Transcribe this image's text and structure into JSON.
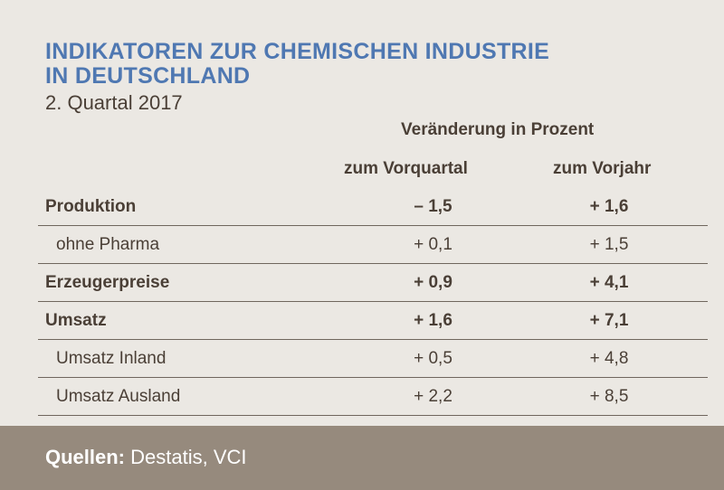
{
  "title": {
    "line1": "INDIKATOREN ZUR CHEMISCHEN INDUSTRIE",
    "line2": "IN DEUTSCHLAND"
  },
  "subtitle": "2.  Quartal 2017",
  "header": {
    "group": "Veränderung in Prozent",
    "col1": "zum Vorquartal",
    "col2": "zum Vorjahr"
  },
  "rows": [
    {
      "label": "Produktion",
      "v1": "– 1,5",
      "v2": "+ 1,6"
    },
    {
      "label": "ohne Pharma",
      "v1": "+ 0,1",
      "v2": "+ 1,5"
    },
    {
      "label": "Erzeugerpreise",
      "v1": "+ 0,9",
      "v2": "+ 4,1"
    },
    {
      "label": "Umsatz",
      "v1": "+ 1,6",
      "v2": "+ 7,1"
    },
    {
      "label": "Umsatz Inland",
      "v1": "+ 0,5",
      "v2": "+ 4,8"
    },
    {
      "label": "Umsatz Ausland",
      "v1": "+ 2,2",
      "v2": "+ 8,5"
    }
  ],
  "footer": {
    "label": "Quellen:",
    "value": " Destatis, VCI"
  }
}
